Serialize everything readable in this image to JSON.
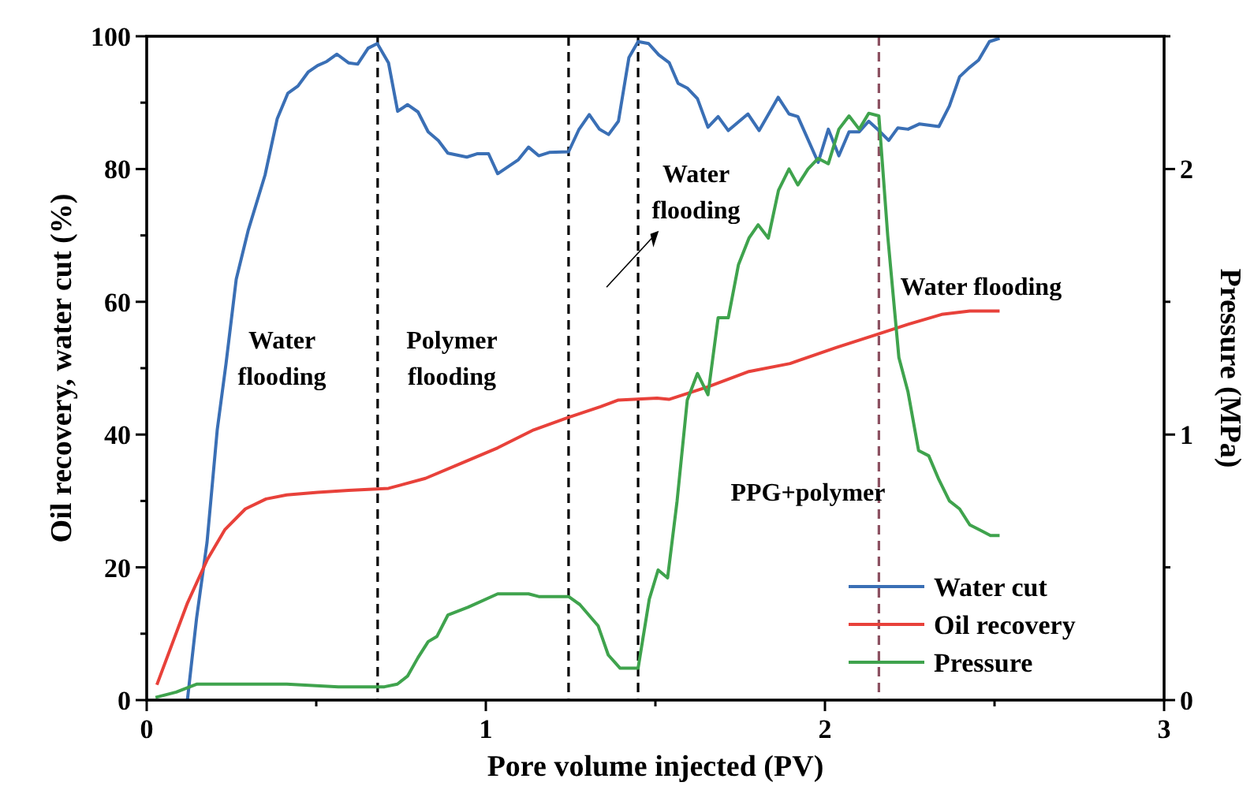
{
  "chart_data": {
    "type": "line",
    "xlabel": "Pore volume injected (PV)",
    "ylabel": "Oil recovery, water cut (%)",
    "y2label": "Pressure (MPa)",
    "xlim": [
      0,
      3
    ],
    "xticks": [
      0,
      {
        "value": 0.5,
        "label": null
      },
      1,
      {
        "value": 1.5,
        "label": null
      },
      2,
      {
        "value": 2.5,
        "label": null
      },
      3
    ],
    "ylim": [
      0,
      100
    ],
    "yticks": [
      0,
      {
        "value": 10,
        "label": null
      },
      20,
      {
        "value": 30,
        "label": null
      },
      40,
      {
        "value": 50,
        "label": null
      },
      60,
      {
        "value": 70,
        "label": null
      },
      80,
      {
        "value": 90,
        "label": null
      },
      100
    ],
    "y2lim": [
      0,
      2.5
    ],
    "y2ticks": [
      0,
      {
        "value": 0.5,
        "label": null
      },
      1,
      {
        "value": 1.5,
        "label": null
      },
      2,
      {
        "value": 2.5,
        "label": null
      }
    ],
    "grid": false,
    "legend": "bottom right",
    "line_style": "solid",
    "marker": "none",
    "series": [
      {
        "name": "Water cut",
        "color": "#3a6fb5",
        "x": [
          0.12,
          0.147,
          0.178,
          0.208,
          0.234,
          0.264,
          0.299,
          0.349,
          0.385,
          0.416,
          0.446,
          0.476,
          0.504,
          0.531,
          0.561,
          0.595,
          0.622,
          0.653,
          0.68,
          0.713,
          0.74,
          0.769,
          0.8,
          0.83,
          0.86,
          0.888,
          0.944,
          0.974,
          1.008,
          1.035,
          1.096,
          1.126,
          1.156,
          1.187,
          1.244,
          1.274,
          1.305,
          1.335,
          1.362,
          1.391,
          1.422,
          1.449,
          1.48,
          1.51,
          1.541,
          1.567,
          1.594,
          1.624,
          1.655,
          1.685,
          1.715,
          1.773,
          1.806,
          1.862,
          1.894,
          1.92,
          1.98,
          2.01,
          2.041,
          2.071,
          2.101,
          2.129,
          2.159,
          2.188,
          2.215,
          2.245,
          2.279,
          2.336,
          2.367,
          2.397,
          2.424,
          2.453,
          2.485,
          2.515
        ],
        "values": [
          0,
          12.3,
          23.8,
          40.7,
          50.7,
          63.4,
          70.7,
          79.1,
          87.6,
          91.4,
          92.5,
          94.6,
          95.6,
          96.2,
          97.3,
          96.0,
          95.8,
          98.2,
          98.9,
          96.0,
          88.7,
          89.7,
          88.6,
          85.6,
          84.3,
          82.4,
          81.8,
          82.3,
          82.3,
          79.3,
          81.4,
          83.3,
          82.0,
          82.5,
          82.6,
          85.9,
          88.2,
          86.0,
          85.2,
          87.2,
          96.8,
          99.2,
          98.9,
          97.2,
          96.0,
          92.9,
          92.2,
          90.6,
          86.3,
          87.9,
          85.8,
          88.3,
          85.8,
          90.8,
          88.3,
          87.9,
          81.0,
          86.0,
          82.0,
          85.6,
          85.6,
          87.2,
          85.8,
          84.3,
          86.2,
          86.0,
          86.8,
          86.4,
          89.5,
          93.9,
          95.2,
          96.4,
          99.2,
          99.7
        ]
      },
      {
        "name": "Oil recovery",
        "color": "#e8413a",
        "x": [
          0.03,
          0.12,
          0.178,
          0.231,
          0.291,
          0.352,
          0.413,
          0.504,
          0.595,
          0.713,
          0.822,
          0.929,
          1.035,
          1.141,
          1.244,
          1.338,
          1.391,
          1.505,
          1.54,
          1.655,
          1.776,
          1.897,
          2.033,
          2.154,
          2.245,
          2.344,
          2.427,
          2.515
        ],
        "values": [
          2.3,
          14.6,
          21.1,
          25.7,
          28.8,
          30.3,
          30.9,
          31.3,
          31.6,
          31.9,
          33.4,
          35.7,
          38.0,
          40.7,
          42.6,
          44.2,
          45.2,
          45.5,
          45.3,
          47.2,
          49.5,
          50.7,
          53.1,
          55.1,
          56.6,
          58.1,
          58.6,
          58.6
        ]
      },
      {
        "name": "Pressure",
        "color": "#3fa34d",
        "axis": "y2",
        "x": [
          0.026,
          0.087,
          0.147,
          0.413,
          0.565,
          0.701,
          0.739,
          0.769,
          0.8,
          0.83,
          0.856,
          0.888,
          0.948,
          1.035,
          1.126,
          1.156,
          1.244,
          1.277,
          1.331,
          1.361,
          1.396,
          1.449,
          1.482,
          1.508,
          1.536,
          1.564,
          1.594,
          1.624,
          1.655,
          1.685,
          1.715,
          1.745,
          1.776,
          1.803,
          1.833,
          1.863,
          1.894,
          1.92,
          1.95,
          1.98,
          2.01,
          2.041,
          2.071,
          2.101,
          2.129,
          2.159,
          2.185,
          2.218,
          2.245,
          2.276,
          2.306,
          2.336,
          2.367,
          2.397,
          2.427,
          2.458,
          2.488,
          2.515
        ],
        "values": [
          0.01,
          0.03,
          0.06,
          0.06,
          0.05,
          0.05,
          0.06,
          0.09,
          0.16,
          0.22,
          0.24,
          0.32,
          0.35,
          0.4,
          0.4,
          0.39,
          0.39,
          0.36,
          0.28,
          0.17,
          0.12,
          0.12,
          0.38,
          0.49,
          0.46,
          0.75,
          1.13,
          1.23,
          1.15,
          1.44,
          1.44,
          1.64,
          1.74,
          1.79,
          1.74,
          1.92,
          2.0,
          1.94,
          2.0,
          2.04,
          2.02,
          2.15,
          2.2,
          2.15,
          2.21,
          2.2,
          1.75,
          1.29,
          1.16,
          0.94,
          0.92,
          0.83,
          0.75,
          0.72,
          0.66,
          0.64,
          0.62,
          0.62
        ]
      }
    ],
    "ref_lines": [
      {
        "axis": "x",
        "value": 0.681,
        "color": "#000000",
        "line_style": "dashed"
      },
      {
        "axis": "x",
        "value": 1.244,
        "color": "#000000",
        "line_style": "dashed"
      },
      {
        "axis": "x",
        "value": 1.449,
        "color": "#000000",
        "line_style": "dashed"
      },
      {
        "axis": "x",
        "value": 2.159,
        "color": "#8b5060",
        "line_style": "dashed"
      }
    ],
    "annotations": [
      "Water\nflooding",
      "Polymer\nflooding",
      "Water\nflooding",
      "PPG+polymer",
      "Water flooding"
    ]
  }
}
